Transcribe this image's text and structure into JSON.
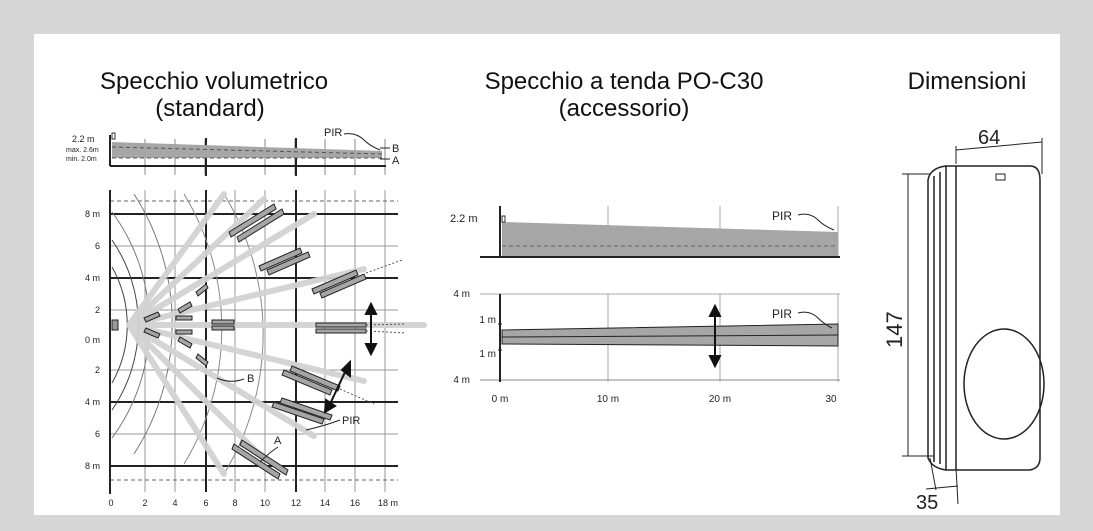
{
  "panels": {
    "left": {
      "title_line1": "Specchio volumetrico",
      "title_line2": "(standard)",
      "side": {
        "height_label": "2.2 m",
        "max_label": "max. 2.6m",
        "min_label": "min. 2.0m",
        "pir_label": "PIR",
        "label_b": "B",
        "label_a": "A"
      },
      "top": {
        "y_labels": [
          "8 m",
          "6",
          "4 m",
          "2",
          "0 m",
          "2",
          "4 m",
          "6",
          "8 m"
        ],
        "x_labels": [
          "0",
          "2",
          "4",
          "6",
          "8",
          "10",
          "12",
          "14",
          "16",
          "18 m"
        ],
        "zone_label_b": "B",
        "zone_label_a": "A",
        "pir_label": "PIR"
      }
    },
    "middle": {
      "title_line1": "Specchio a tenda PO-C30",
      "title_line2": "(accessorio)",
      "side": {
        "height_label": "2.2 m",
        "pir_label": "PIR"
      },
      "top": {
        "y_top": "4 m",
        "y_mid_upper": "1 m",
        "y_mid_lower": "1 m",
        "y_bottom": "4 m",
        "pir_label": "PIR",
        "x_labels": [
          "0 m",
          "10 m",
          "20 m",
          "30"
        ]
      }
    },
    "right": {
      "title": "Dimensioni",
      "width_label": "64",
      "height_label": "147",
      "depth_label": "35"
    }
  },
  "colors": {
    "background": "#d6d6d6",
    "panel": "#ffffff",
    "zone_fill": "#a6a6a6",
    "light_zone": "#d2d2d2",
    "line": "#222222"
  }
}
